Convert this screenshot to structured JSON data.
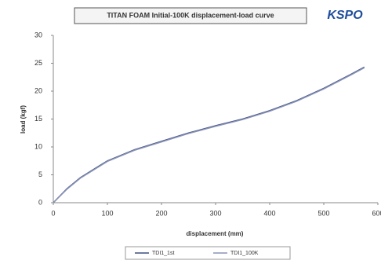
{
  "chart_data": {
    "type": "line",
    "title": "TITAN FOAM Initial-100K displacement-load curve",
    "brand": "KSPO",
    "x_label": "displacement (mm)",
    "y_label": "load (kgf)",
    "x": [
      0,
      25,
      50,
      100,
      150,
      200,
      250,
      300,
      350,
      400,
      450,
      500,
      550,
      575
    ],
    "series": [
      {
        "name": "TDI1_1st",
        "color": "#3f4f80",
        "values": [
          0,
          2.5,
          4.5,
          7.5,
          9.5,
          11,
          12.5,
          13.8,
          15,
          16.5,
          18.3,
          20.5,
          23,
          24.3
        ]
      },
      {
        "name": "TDI1_100K",
        "color": "#8a94b8",
        "values": [
          0,
          2.4,
          4.4,
          7.4,
          9.4,
          10.9,
          12.4,
          13.7,
          14.9,
          16.4,
          18.2,
          20.4,
          22.9,
          24.2
        ]
      }
    ],
    "xlim": [
      0,
      600
    ],
    "xticks": [
      0,
      100,
      200,
      300,
      400,
      500,
      600
    ],
    "ylim": [
      0,
      30
    ],
    "yticks": [
      0,
      5,
      10,
      15,
      20,
      25,
      30
    ],
    "grid": false
  }
}
